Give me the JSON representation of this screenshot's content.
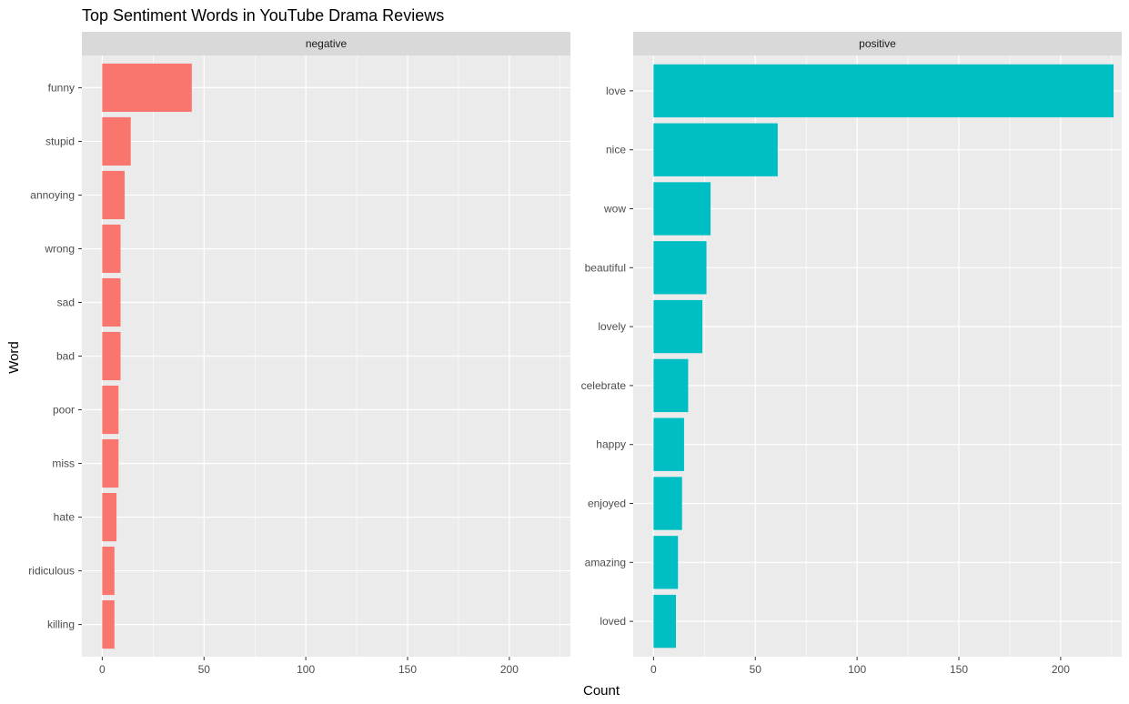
{
  "chart_data": {
    "type": "bar",
    "orientation": "horizontal",
    "title": "Top Sentiment Words in YouTube Drama Reviews",
    "xlabel": "Count",
    "ylabel": "Word",
    "xlim": [
      -10,
      230
    ],
    "x_ticks": [
      0,
      50,
      100,
      150,
      200
    ],
    "grid": true,
    "legend": "none",
    "panels": [
      {
        "strip_label": "negative",
        "color": "#F8766D",
        "categories": [
          "funny",
          "stupid",
          "annoying",
          "wrong",
          "sad",
          "bad",
          "poor",
          "miss",
          "hate",
          "ridiculous",
          "killing"
        ],
        "values": [
          44,
          14,
          11,
          9,
          9,
          9,
          8,
          8,
          7,
          6,
          6
        ]
      },
      {
        "strip_label": "positive",
        "color": "#00BFC4",
        "categories": [
          "love",
          "nice",
          "wow",
          "beautiful",
          "lovely",
          "celebrate",
          "happy",
          "enjoyed",
          "amazing",
          "loved"
        ],
        "values": [
          226,
          61,
          28,
          26,
          24,
          17,
          15,
          14,
          12,
          11
        ]
      }
    ]
  }
}
